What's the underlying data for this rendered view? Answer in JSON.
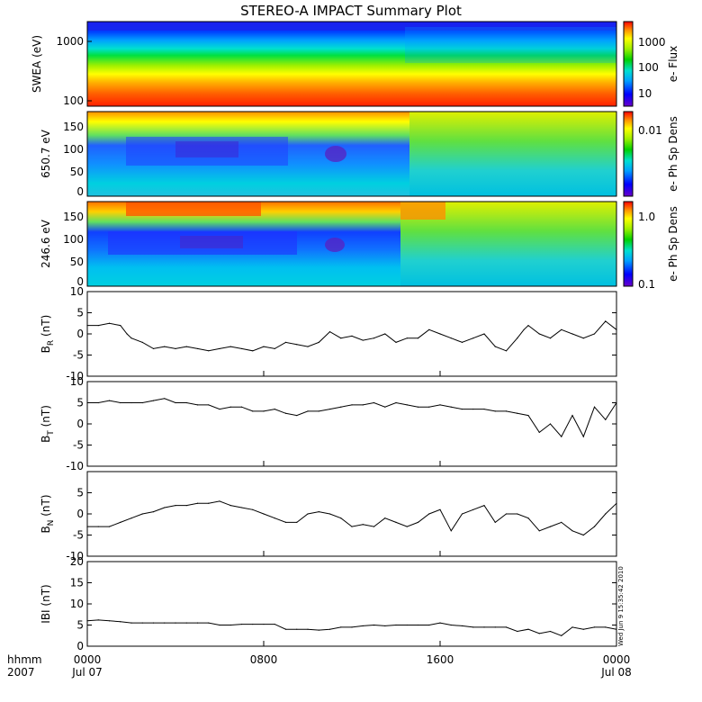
{
  "title": "STEREO-A IMPACT Summary Plot",
  "stamp": "Wed Jun  9 15:35:42 2010",
  "x_axis": {
    "row_label_1": "hhmm",
    "row_label_2": "2007",
    "ticks": [
      {
        "top": "0000",
        "bottom": "Jul 07",
        "hour": 0
      },
      {
        "top": "0800",
        "bottom": "",
        "hour": 8
      },
      {
        "top": "1600",
        "bottom": "",
        "hour": 16
      },
      {
        "top": "0000",
        "bottom": "Jul 08",
        "hour": 24
      }
    ]
  },
  "spectrograms": [
    {
      "id": "swea",
      "ylabel": "SWEA (eV)",
      "yticks": [
        "1000",
        "100"
      ],
      "cbar_label": "e- Flux",
      "cbar_ticks": [
        "1000",
        "100",
        "10"
      ],
      "description_type": "energy spectrogram"
    },
    {
      "id": "pad650",
      "ylabel": "650.7 eV",
      "yticks": [
        "150",
        "100",
        "50",
        "0"
      ],
      "cbar_label": "e- Ph Sp Dens",
      "cbar_ticks": [
        "0.01"
      ],
      "description_type": "pitch angle distribution"
    },
    {
      "id": "pad246",
      "ylabel": "246.6 eV",
      "yticks": [
        "150",
        "100",
        "50",
        "0"
      ],
      "cbar_label": "e- Ph Sp Dens",
      "cbar_ticks": [
        "1.0",
        "0.1"
      ],
      "description_type": "pitch angle distribution"
    }
  ],
  "chart_data": [
    {
      "type": "line",
      "name": "B_R",
      "ylabel": "B",
      "ylabel_sub": "R",
      "ylabel_unit": "(nT)",
      "ylim": [
        -10,
        10
      ],
      "yticks": [
        "10",
        "5",
        "0",
        "-5",
        "-10"
      ],
      "x_hours": [
        0,
        0.5,
        1,
        1.5,
        1.8,
        2,
        2.5,
        3,
        3.5,
        4,
        4.5,
        5,
        5.5,
        6,
        6.5,
        7,
        7.5,
        8,
        8.5,
        9,
        9.5,
        10,
        10.5,
        11,
        11.5,
        12,
        12.5,
        13,
        13.5,
        14,
        14.5,
        15,
        15.5,
        16,
        16.5,
        17,
        17.5,
        18,
        18.5,
        19,
        19.5,
        19.8,
        20,
        20.5,
        21,
        21.5,
        22,
        22.5,
        23,
        23.5,
        24
      ],
      "values": [
        2,
        2,
        2.5,
        2,
        0,
        -1,
        -2,
        -3.5,
        -3,
        -3.5,
        -3,
        -3.5,
        -4,
        -3.5,
        -3,
        -3.5,
        -4,
        -3,
        -3.5,
        -2,
        -2.5,
        -3,
        -2,
        0.5,
        -1,
        -0.5,
        -1.5,
        -1,
        0,
        -2,
        -1,
        -1,
        1,
        0,
        -1,
        -2,
        -1,
        0,
        -3,
        -4,
        -1,
        1,
        2,
        0,
        -1,
        1,
        0,
        -1,
        0,
        3,
        1
      ]
    },
    {
      "type": "line",
      "name": "B_T",
      "ylabel": "B",
      "ylabel_sub": "T",
      "ylabel_unit": "(nT)",
      "ylim": [
        -10,
        10
      ],
      "yticks": [
        "10",
        "5",
        "0",
        "-5",
        "-10"
      ],
      "x_hours": [
        0,
        0.5,
        1,
        1.5,
        2,
        2.5,
        3,
        3.5,
        4,
        4.5,
        5,
        5.5,
        6,
        6.5,
        7,
        7.5,
        8,
        8.5,
        9,
        9.5,
        10,
        10.5,
        11,
        11.5,
        12,
        12.5,
        13,
        13.5,
        14,
        14.5,
        15,
        15.5,
        16,
        16.5,
        17,
        17.5,
        18,
        18.5,
        19,
        19.5,
        20,
        20.5,
        21,
        21.5,
        22,
        22.5,
        23,
        23.5,
        24
      ],
      "values": [
        5,
        5,
        5.5,
        5,
        5,
        5,
        5.5,
        6,
        5,
        5,
        4.5,
        4.5,
        3.5,
        4,
        4,
        3,
        3,
        3.5,
        2.5,
        2,
        3,
        3,
        3.5,
        4,
        4.5,
        4.5,
        5,
        4,
        5,
        4.5,
        4,
        4,
        4.5,
        4,
        3.5,
        3.5,
        3.5,
        3,
        3,
        2.5,
        2,
        -2,
        0,
        -3,
        2,
        -3,
        4,
        1,
        5
      ]
    },
    {
      "type": "line",
      "name": "B_N",
      "ylabel": "B",
      "ylabel_sub": "N",
      "ylabel_unit": "(nT)",
      "ylim": [
        -10,
        10
      ],
      "yticks": [
        "5",
        "0",
        "-5",
        "-10"
      ],
      "x_hours": [
        0,
        0.5,
        1,
        1.5,
        2,
        2.5,
        3,
        3.5,
        4,
        4.5,
        5,
        5.5,
        6,
        6.5,
        7,
        7.5,
        8,
        8.5,
        9,
        9.5,
        10,
        10.5,
        11,
        11.5,
        12,
        12.5,
        13,
        13.5,
        14,
        14.5,
        15,
        15.5,
        16,
        16.5,
        17,
        17.5,
        18,
        18.5,
        19,
        19.5,
        20,
        20.5,
        21,
        21.5,
        22,
        22.5,
        23,
        23.5,
        24
      ],
      "values": [
        -3,
        -3,
        -3,
        -2,
        -1,
        0,
        0.5,
        1.5,
        2,
        2,
        2.5,
        2.5,
        3,
        2,
        1.5,
        1,
        0,
        -1,
        -2,
        -2,
        0,
        0.5,
        0,
        -1,
        -3,
        -2.5,
        -3,
        -1,
        -2,
        -3,
        -2,
        0,
        1,
        -4,
        0,
        1,
        2,
        -2,
        0,
        0,
        -1,
        -4,
        -3,
        -2,
        -4,
        -5,
        -3,
        0,
        2.5
      ]
    },
    {
      "type": "line",
      "name": "|B|",
      "ylabel": "IBI",
      "ylabel_sub": "",
      "ylabel_unit": "(nT)",
      "ylim": [
        0,
        20
      ],
      "yticks": [
        "20",
        "15",
        "10",
        "5",
        "0"
      ],
      "x_hours": [
        0,
        0.5,
        1,
        1.5,
        2,
        2.5,
        3,
        3.5,
        4,
        4.5,
        5,
        5.5,
        6,
        6.5,
        7,
        7.5,
        8,
        8.5,
        9,
        9.5,
        10,
        10.5,
        11,
        11.5,
        12,
        12.5,
        13,
        13.5,
        14,
        14.5,
        15,
        15.5,
        16,
        16.5,
        17,
        17.5,
        18,
        18.5,
        19,
        19.5,
        20,
        20.5,
        21,
        21.5,
        22,
        22.5,
        23,
        23.5,
        24
      ],
      "values": [
        6,
        6.2,
        6,
        5.8,
        5.5,
        5.5,
        5.5,
        5.5,
        5.5,
        5.5,
        5.5,
        5.5,
        5,
        5,
        5.2,
        5.2,
        5.2,
        5.2,
        4,
        4,
        4,
        3.8,
        4,
        4.5,
        4.5,
        4.8,
        5,
        4.8,
        5,
        5,
        5,
        5,
        5.5,
        5,
        4.8,
        4.5,
        4.5,
        4.5,
        4.5,
        3.5,
        4,
        3,
        3.5,
        2.5,
        4.5,
        4,
        4.5,
        4.5,
        4
      ]
    }
  ]
}
